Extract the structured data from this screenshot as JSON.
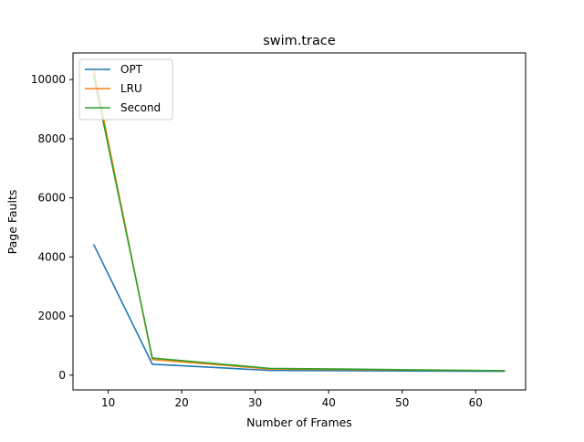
{
  "chart_data": {
    "type": "line",
    "title": "swim.trace",
    "xlabel": "Number of Frames",
    "ylabel": "Page Faults",
    "x": [
      8,
      16,
      32,
      64
    ],
    "xlim": [
      5.2,
      66.8
    ],
    "ylim": [
      -500,
      10900
    ],
    "xticks": [
      10,
      20,
      30,
      40,
      50,
      60
    ],
    "yticks": [
      0,
      2000,
      4000,
      6000,
      8000,
      10000
    ],
    "grid": false,
    "legend_position": "top-left",
    "series": [
      {
        "name": "OPT",
        "color": "#1f77b4",
        "values": [
          4430,
          370,
          160,
          130
        ]
      },
      {
        "name": "LRU",
        "color": "#ff7f0e",
        "values": [
          10350,
          530,
          210,
          150
        ]
      },
      {
        "name": "Second",
        "color": "#2ca02c",
        "values": [
          10150,
          580,
          230,
          150
        ]
      }
    ]
  }
}
